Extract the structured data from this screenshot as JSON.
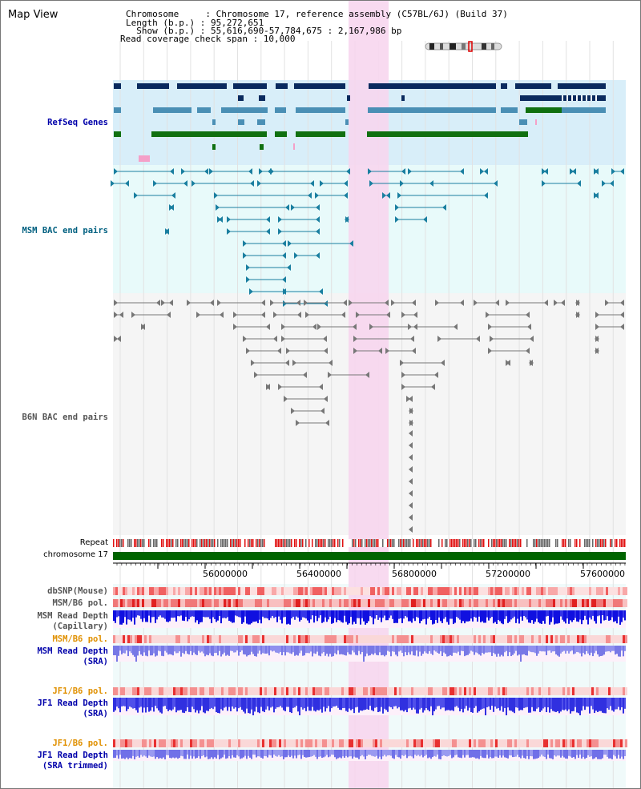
{
  "title": "Map View",
  "info": {
    "line1": "Chromosome     : Chromosome 17, reference assembly (C57BL/6J) (Build 37)",
    "line2": "Length (b.p.) : 95,272,651",
    "line3": "  Show (b.p.) : 55,616,690-57,784,675 : 2,167,986 bp",
    "line4": "Read coverage check span : 10,000"
  },
  "tracks": {
    "refseq": "RefSeq Genes",
    "msm_bac": "MSM BAC end pairs",
    "b6n_bac": "B6N BAC end pairs",
    "repeat": "Repeat",
    "chromosome": "chromosome 17",
    "dbsnp": "dbSNP(Mouse)",
    "msm_b6_pol": "MSM/B6 pol.",
    "msm_depth_cap_1": "MSM Read Depth",
    "msm_depth_cap_2": "(Capillary)",
    "msm_b6_pol2": "MSM/B6 pol.",
    "msm_depth_sra_1": "MSM Read Depth",
    "msm_depth_sra_2": "(SRA)",
    "jf1_b6_pol": "JF1/B6 pol.",
    "jf1_depth_sra_1": "JF1 Read Depth",
    "jf1_depth_sra_2": "(SRA)",
    "jf1_b6_pol2": "JF1/B6 pol.",
    "jf1_depth_trim_1": "JF1 Read Depth",
    "jf1_depth_trim_2": "(SRA trimmed)"
  },
  "axis": {
    "ticks": [
      "56000000",
      "56400000",
      "56800000",
      "57200000",
      "57600000"
    ]
  },
  "colors": {
    "gene_dark": "#0a2a5e",
    "gene_mid": "#4a8fb5",
    "gene_green": "#107010",
    "highlight": "#f7d6ee",
    "refseq_bg": "#d8eef9",
    "bac_bg": "#e8fafa",
    "label_blue": "#0000aa",
    "label_orange": "#e09000",
    "label_teal": "#006080",
    "label_gray": "#555555"
  }
}
